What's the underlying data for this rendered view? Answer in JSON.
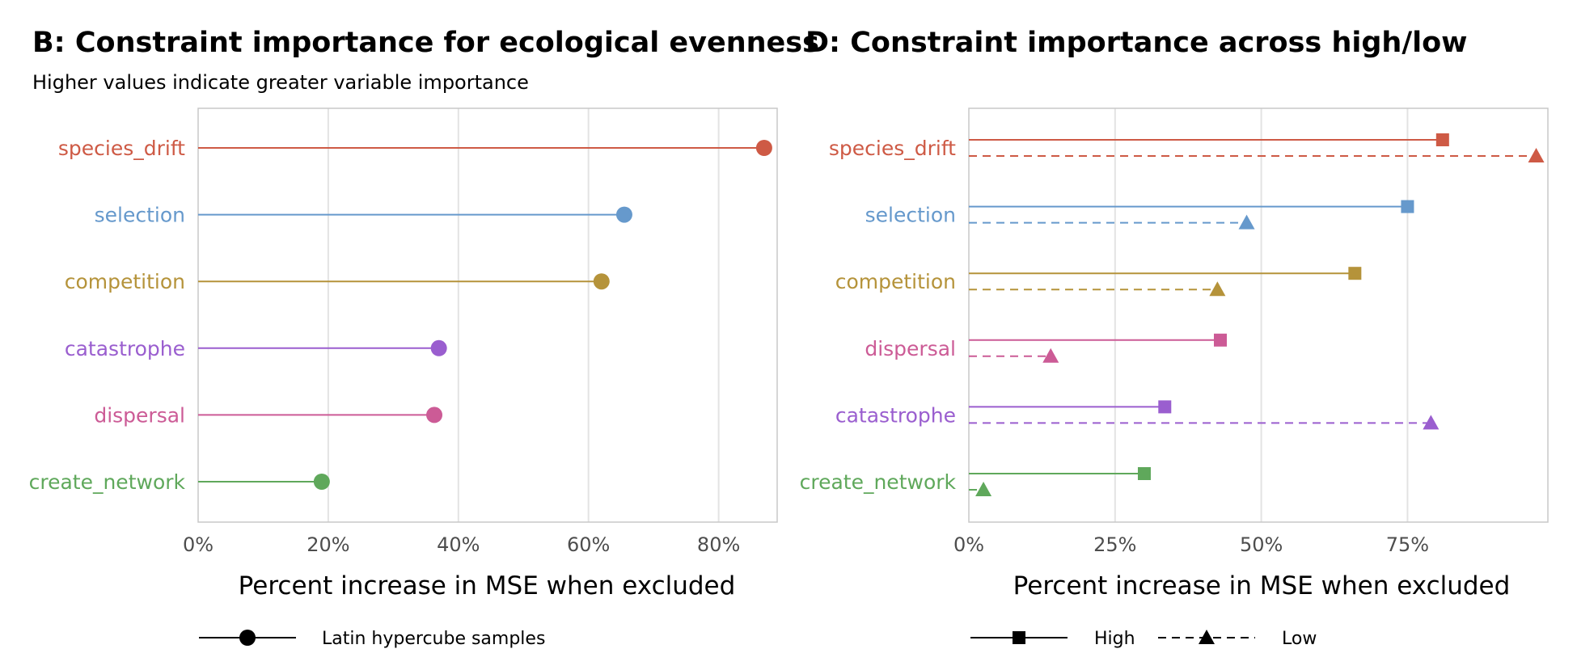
{
  "chart_data": [
    {
      "type": "lollipop",
      "title": "B: Constraint importance for ecological evenness",
      "subtitle": "Higher values indicate greater variable importance",
      "xlabel": "Percent increase in MSE when excluded",
      "ylabel": "",
      "xlim": [
        0,
        89
      ],
      "x_ticks": [
        0,
        20,
        40,
        60,
        80
      ],
      "x_tick_labels": [
        "0%",
        "20%",
        "40%",
        "60%",
        "80%"
      ],
      "grid": true,
      "categories": [
        "species_drift",
        "selection",
        "competition",
        "catastrophe",
        "dispersal",
        "create_network"
      ],
      "colors": [
        "#CE5A45",
        "#6699CC",
        "#B5933A",
        "#9A5ECF",
        "#CC5B96",
        "#5FA85B"
      ],
      "series": [
        {
          "name": "Latin hypercube samples",
          "marker": "circle",
          "line": "solid",
          "values": [
            87,
            65.5,
            62,
            37,
            36.3,
            19
          ]
        }
      ],
      "legend_position": "bottom"
    },
    {
      "type": "lollipop",
      "title": "D: Constraint importance across high/low",
      "subtitle": "",
      "xlabel": "Percent increase in MSE when excluded",
      "ylabel": "",
      "xlim": [
        0,
        99
      ],
      "x_ticks": [
        0,
        25,
        50,
        75
      ],
      "x_tick_labels": [
        "0%",
        "25%",
        "50%",
        "75%"
      ],
      "grid": true,
      "categories": [
        "species_drift",
        "selection",
        "competition",
        "dispersal",
        "catastrophe",
        "create_network"
      ],
      "colors": [
        "#CE5A45",
        "#6699CC",
        "#B5933A",
        "#CC5B96",
        "#9A5ECF",
        "#5FA85B"
      ],
      "series": [
        {
          "name": "High",
          "marker": "square",
          "line": "solid",
          "values": [
            81,
            75,
            66,
            43,
            33.5,
            30
          ]
        },
        {
          "name": "Low",
          "marker": "triangle",
          "line": "dashed",
          "values": [
            97,
            47.5,
            42.5,
            14,
            79,
            2.5
          ]
        }
      ],
      "legend_position": "bottom"
    }
  ]
}
